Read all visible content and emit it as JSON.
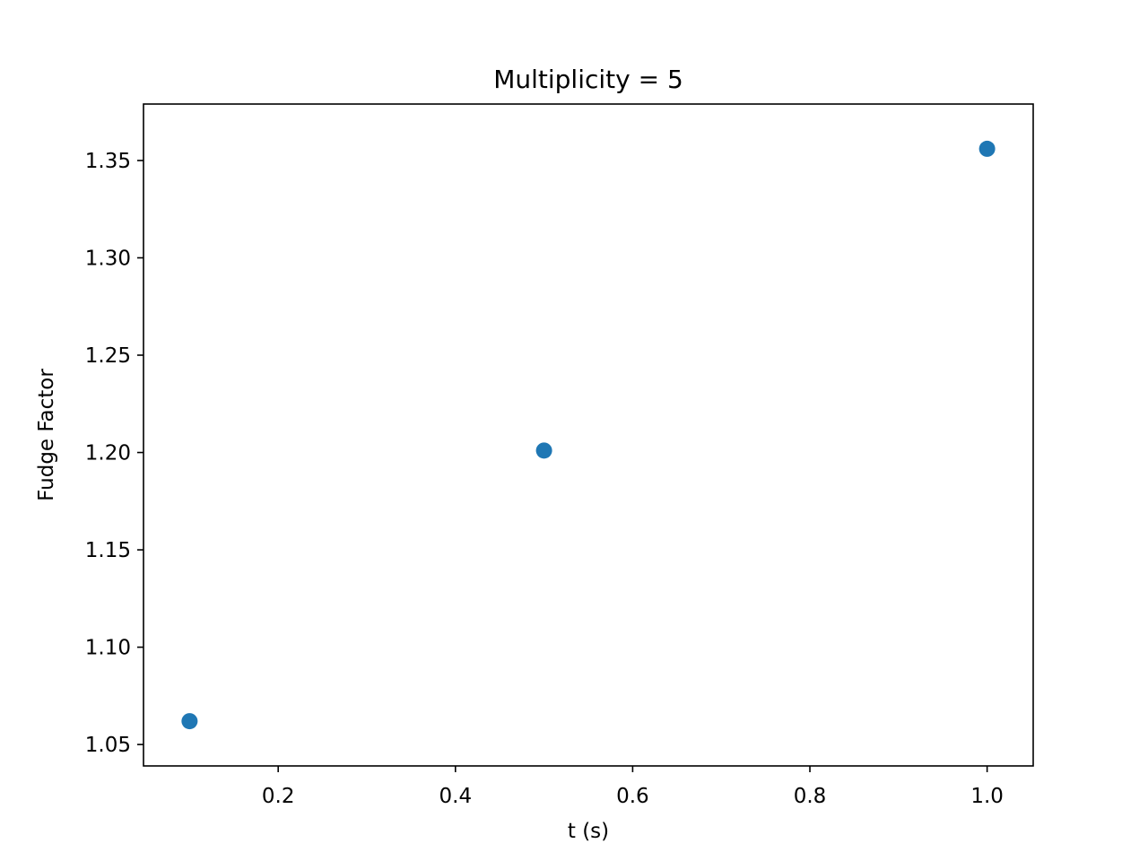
{
  "chart_data": {
    "type": "scatter",
    "title": "Multiplicity = 5",
    "xlabel": "t (s)",
    "ylabel": "Fudge Factor",
    "xlim": [
      0.048,
      1.052
    ],
    "ylim": [
      1.039,
      1.379
    ],
    "xticks": [
      0.2,
      0.4,
      0.6,
      0.8,
      1.0
    ],
    "xtick_labels": [
      "0.2",
      "0.4",
      "0.6",
      "0.8",
      "1.0"
    ],
    "yticks": [
      1.05,
      1.1,
      1.15,
      1.2,
      1.25,
      1.3,
      1.35
    ],
    "ytick_labels": [
      "1.05",
      "1.10",
      "1.15",
      "1.20",
      "1.25",
      "1.30",
      "1.35"
    ],
    "grid": false,
    "legend": "none",
    "series": [
      {
        "color": "#1f77b4",
        "x": [
          0.1,
          0.5,
          1.0
        ],
        "y": [
          1.062,
          1.201,
          1.356
        ]
      }
    ]
  }
}
